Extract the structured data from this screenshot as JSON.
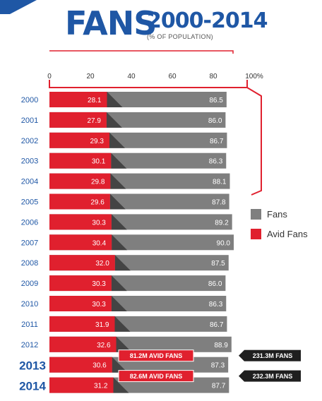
{
  "header": {
    "title": "FANS",
    "years": "2000-2014",
    "subtitle": "(% OF POPULATION)"
  },
  "colors": {
    "fans": "#7f7f7f",
    "avid": "#e0202e",
    "shade": "#3a3a3a",
    "accent_blue": "#1f57a5",
    "annotation_dark": "#1f1f1f"
  },
  "chart_data": {
    "type": "bar",
    "orientation": "horizontal",
    "xlim": [
      0,
      100
    ],
    "x_ticks": [
      "0",
      "20",
      "40",
      "60",
      "80",
      "100%"
    ],
    "categories": [
      "2000",
      "2001",
      "2002",
      "2003",
      "2004",
      "2005",
      "2006",
      "2007",
      "2008",
      "2009",
      "2010",
      "2011",
      "2012",
      "2013",
      "2014"
    ],
    "series": [
      {
        "name": "Fans",
        "values": [
          86.5,
          86.0,
          86.7,
          86.3,
          88.1,
          87.8,
          89.2,
          90.0,
          87.5,
          86.0,
          86.3,
          86.7,
          88.9,
          87.3,
          87.7
        ]
      },
      {
        "name": "Avid Fans",
        "values": [
          28.1,
          27.9,
          29.3,
          30.1,
          29.8,
          29.6,
          30.3,
          30.4,
          32.0,
          30.3,
          30.3,
          31.9,
          32.6,
          30.6,
          31.2
        ]
      }
    ],
    "value_labels": {
      "Fans": [
        "86.5",
        "86.0",
        "86.7",
        "86.3",
        "88.1",
        "87.8",
        "89.2",
        "90.0",
        "87.5",
        "86.0",
        "86.3",
        "86.7",
        "88.9",
        "87.3",
        "87.7"
      ],
      "Avid Fans": [
        "28.1",
        "27.9",
        "29.3",
        "30.1",
        "29.8",
        "29.6",
        "30.3",
        "30.4",
        "32.0",
        "30.3",
        "30.3",
        "31.9",
        "32.6",
        "30.6",
        "31.2"
      ]
    },
    "highlighted_categories": [
      "2013",
      "2014"
    ],
    "annotations": [
      {
        "category": "2013",
        "avid": "81.2M AVID FANS",
        "fans": "231.3M FANS"
      },
      {
        "category": "2014",
        "avid": "82.6M AVID FANS",
        "fans": "232.3M FANS"
      }
    ],
    "legend": {
      "position": "right",
      "items": [
        {
          "label": "Fans",
          "color": "#7f7f7f"
        },
        {
          "label": "Avid Fans",
          "color": "#e0202e"
        }
      ]
    }
  }
}
